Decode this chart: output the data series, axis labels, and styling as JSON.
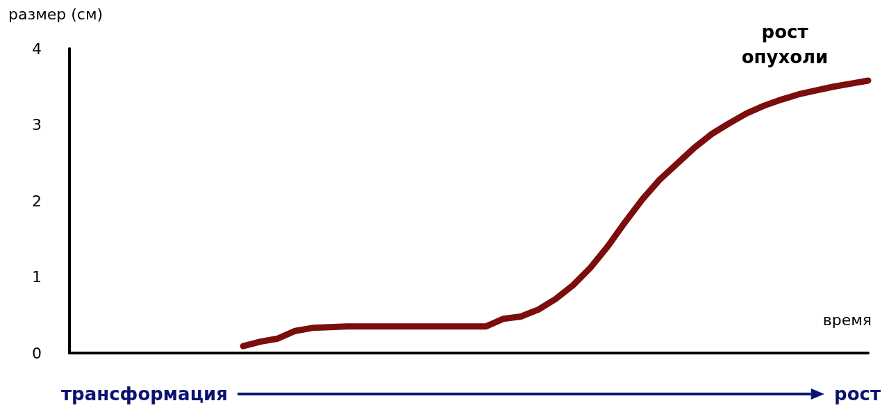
{
  "chart_data": {
    "type": "line",
    "ylabel": "размер (см)",
    "xlabel": "время",
    "categories": [
      null,
      null,
      null,
      null,
      null,
      null,
      null,
      null,
      null,
      null,
      null,
      null,
      null,
      null,
      null,
      null,
      null,
      null,
      null,
      null,
      null,
      null,
      null,
      null,
      null,
      null,
      null,
      null,
      null,
      null,
      null,
      null,
      null,
      null,
      null,
      null,
      null,
      null,
      null,
      null,
      null,
      null,
      null,
      null,
      null,
      null,
      null
    ],
    "series": [
      {
        "color": "#7b0d0d",
        "values": [
          null,
          null,
          null,
          null,
          null,
          null,
          null,
          null,
          null,
          null,
          0.09,
          0.15,
          0.19,
          0.29,
          0.33,
          0.34,
          0.35,
          0.35,
          0.35,
          0.35,
          0.35,
          0.35,
          0.35,
          0.35,
          0.35,
          0.45,
          0.48,
          0.57,
          0.71,
          0.89,
          1.12,
          1.4,
          1.72,
          2.02,
          2.28,
          2.49,
          2.7,
          2.88,
          3.02,
          3.15,
          3.25,
          3.33,
          3.4,
          3.45,
          3.5,
          3.54,
          3.58
        ]
      }
    ],
    "ylim": [
      0,
      4
    ],
    "yticks": [
      0,
      1,
      2,
      3,
      4
    ],
    "grid": false,
    "line_style": "solid",
    "tick_labels": "y",
    "annotations": [
      "рост опухоли",
      "трансформация",
      "рост"
    ]
  }
}
